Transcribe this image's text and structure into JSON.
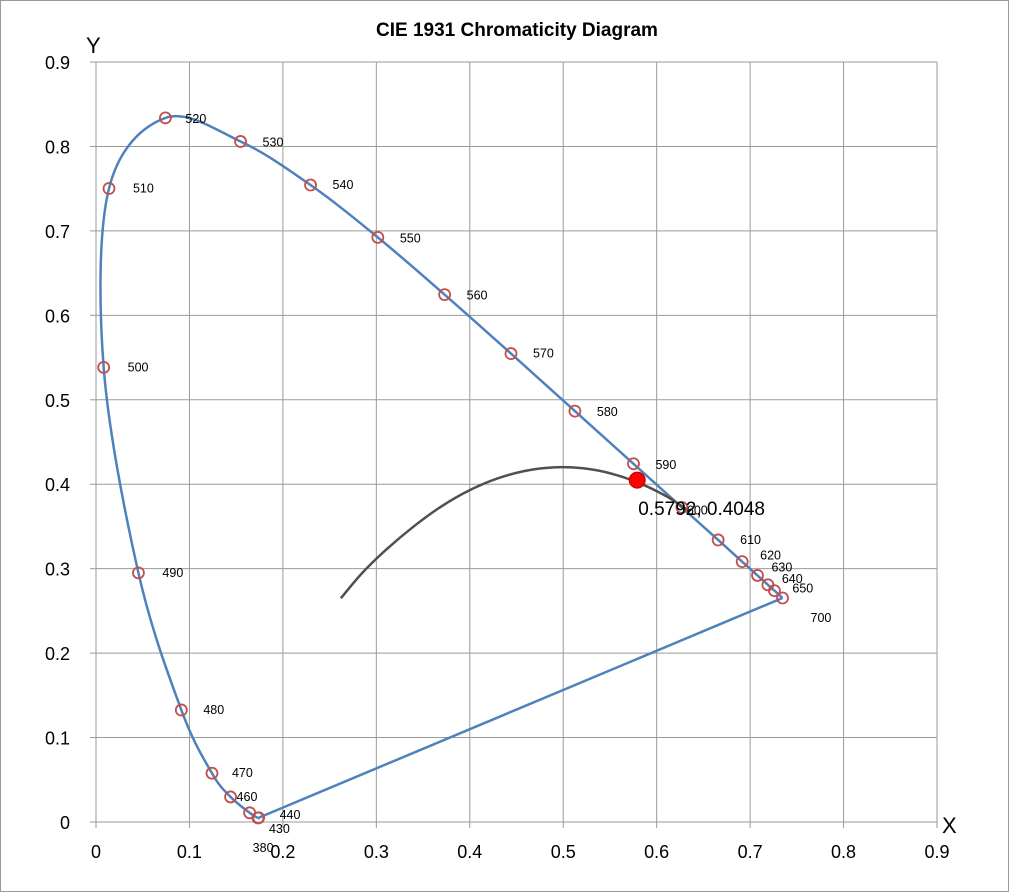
{
  "chart_data": {
    "type": "scatter",
    "title": "CIE 1931 Chromaticity Diagram",
    "xlabel": "X",
    "ylabel": "Y",
    "xlim": [
      0,
      0.9
    ],
    "ylim": [
      0,
      0.9
    ],
    "x_ticks": [
      "0",
      "0.1",
      "0.2",
      "0.3",
      "0.4",
      "0.5",
      "0.6",
      "0.7",
      "0.8",
      "0.9"
    ],
    "y_ticks": [
      "0",
      "0.1",
      "0.2",
      "0.3",
      "0.4",
      "0.5",
      "0.6",
      "0.7",
      "0.8",
      "0.9"
    ],
    "grid": true,
    "colors": {
      "locus": "#4f81bd",
      "marker": "#c0504d",
      "planckian": "#505050",
      "highlight": "#ff0000",
      "grid": "#9a9a9a"
    },
    "spectral_locus": [
      {
        "nm": "380",
        "x": 0.1741,
        "y": 0.005
      },
      {
        "nm": "430",
        "x": 0.1733,
        "y": 0.0048
      },
      {
        "nm": "440",
        "x": 0.1644,
        "y": 0.0109
      },
      {
        "nm": "460",
        "x": 0.144,
        "y": 0.0297
      },
      {
        "nm": "470",
        "x": 0.1241,
        "y": 0.0578
      },
      {
        "nm": "480",
        "x": 0.0913,
        "y": 0.1327
      },
      {
        "nm": "490",
        "x": 0.0454,
        "y": 0.295
      },
      {
        "nm": "500",
        "x": 0.0082,
        "y": 0.5384
      },
      {
        "nm": "510",
        "x": 0.0139,
        "y": 0.7502
      },
      {
        "nm": "520",
        "x": 0.0743,
        "y": 0.8338
      },
      {
        "nm": "530",
        "x": 0.1547,
        "y": 0.8059
      },
      {
        "nm": "540",
        "x": 0.2296,
        "y": 0.7543
      },
      {
        "nm": "550",
        "x": 0.3016,
        "y": 0.6923
      },
      {
        "nm": "560",
        "x": 0.3731,
        "y": 0.6245
      },
      {
        "nm": "570",
        "x": 0.4441,
        "y": 0.5547
      },
      {
        "nm": "580",
        "x": 0.5125,
        "y": 0.4866
      },
      {
        "nm": "590",
        "x": 0.5752,
        "y": 0.4242
      },
      {
        "nm": "600",
        "x": 0.627,
        "y": 0.3725
      },
      {
        "nm": "610",
        "x": 0.6658,
        "y": 0.334
      },
      {
        "nm": "620",
        "x": 0.6915,
        "y": 0.3083
      },
      {
        "nm": "630",
        "x": 0.7079,
        "y": 0.292
      },
      {
        "nm": "640",
        "x": 0.719,
        "y": 0.2809
      },
      {
        "nm": "650",
        "x": 0.726,
        "y": 0.274
      },
      {
        "nm": "700",
        "x": 0.7347,
        "y": 0.2653
      }
    ],
    "planckian_locus": [
      {
        "x": 0.262,
        "y": 0.265
      },
      {
        "x": 0.285,
        "y": 0.295
      },
      {
        "x": 0.31,
        "y": 0.322
      },
      {
        "x": 0.34,
        "y": 0.35
      },
      {
        "x": 0.37,
        "y": 0.374
      },
      {
        "x": 0.4,
        "y": 0.393
      },
      {
        "x": 0.43,
        "y": 0.407
      },
      {
        "x": 0.46,
        "y": 0.416
      },
      {
        "x": 0.49,
        "y": 0.42
      },
      {
        "x": 0.52,
        "y": 0.419
      },
      {
        "x": 0.55,
        "y": 0.413
      },
      {
        "x": 0.58,
        "y": 0.402
      },
      {
        "x": 0.61,
        "y": 0.386
      },
      {
        "x": 0.635,
        "y": 0.368
      }
    ],
    "highlight_point": {
      "x": 0.5792,
      "y": 0.4048,
      "label": "0.5792, 0.4048"
    }
  }
}
